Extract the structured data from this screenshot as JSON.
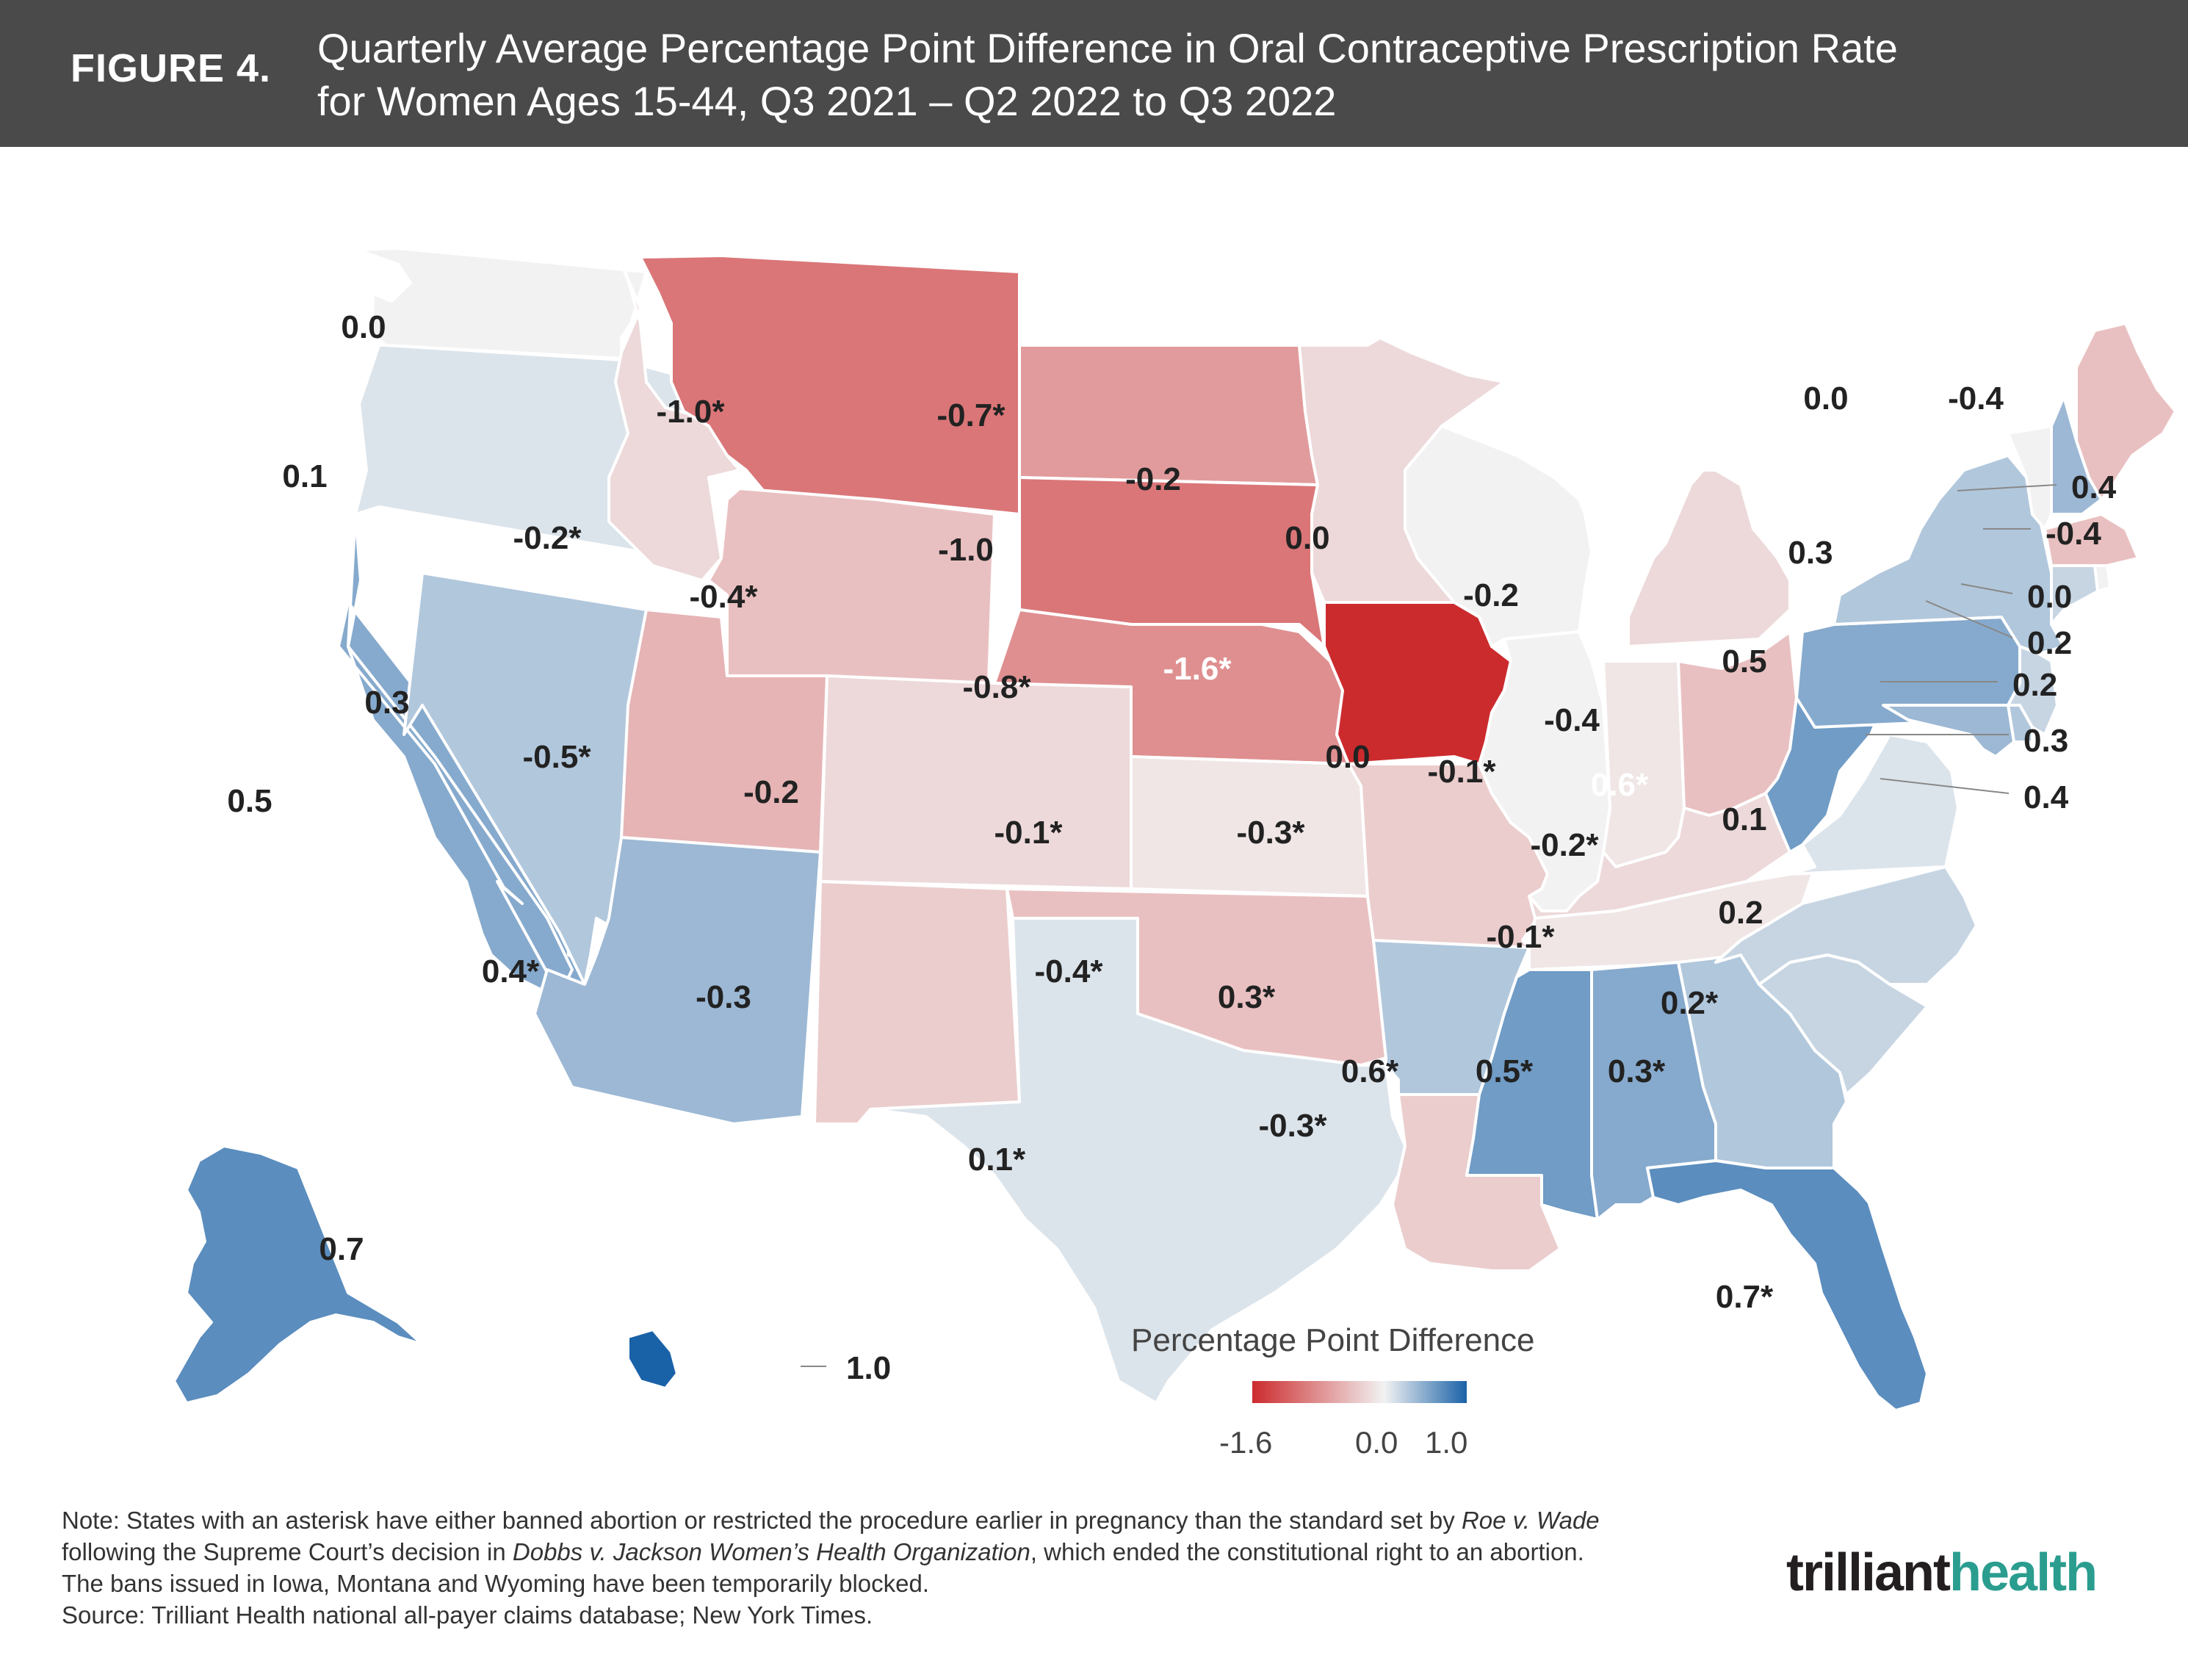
{
  "header": {
    "figure_label": "FIGURE 4.",
    "title_line1": "Quarterly Average Percentage Point Difference in Oral Contraceptive Prescription Rate",
    "title_line2": "for Women Ages 15-44, Q3 2021 – Q2 2022 to Q3 2022"
  },
  "legend": {
    "title": "Percentage Point Difference",
    "min_label": "-1.6",
    "mid_label": "0.0",
    "max_label": "1.0",
    "min_color": "#cc2b2e",
    "mid_color": "#f2f2f2",
    "max_color": "#1a62a8"
  },
  "states": [
    {
      "id": "WA",
      "value": -0.0,
      "label": "0.0"
    },
    {
      "id": "OR",
      "value": 0.1,
      "label": "0.1"
    },
    {
      "id": "CA",
      "value": 0.5,
      "label": "0.5"
    },
    {
      "id": "NV",
      "value": 0.3,
      "label": "0.3"
    },
    {
      "id": "ID",
      "value": -0.2,
      "label": "-0.2*"
    },
    {
      "id": "MT",
      "value": -1.0,
      "label": "-1.0*"
    },
    {
      "id": "WY",
      "value": -0.4,
      "label": "-0.4*"
    },
    {
      "id": "UT",
      "value": -0.5,
      "label": "-0.5*"
    },
    {
      "id": "AZ",
      "value": 0.4,
      "label": "0.4*"
    },
    {
      "id": "CO",
      "value": -0.2,
      "label": "-0.2"
    },
    {
      "id": "NM",
      "value": -0.3,
      "label": "-0.3"
    },
    {
      "id": "ND",
      "value": -0.7,
      "label": "-0.7*"
    },
    {
      "id": "SD",
      "value": -1.0,
      "label": "-1.0"
    },
    {
      "id": "NE",
      "value": -0.8,
      "label": "-0.8*"
    },
    {
      "id": "KS",
      "value": -0.1,
      "label": "-0.1*"
    },
    {
      "id": "OK",
      "value": -0.4,
      "label": "-0.4*"
    },
    {
      "id": "TX",
      "value": 0.1,
      "label": "0.1*"
    },
    {
      "id": "MN",
      "value": -0.2,
      "label": "-0.2"
    },
    {
      "id": "IA",
      "value": -1.6,
      "label": "-1.6*"
    },
    {
      "id": "MO",
      "value": -0.3,
      "label": "-0.3*"
    },
    {
      "id": "AR",
      "value": 0.3,
      "label": "0.3*"
    },
    {
      "id": "LA",
      "value": -0.3,
      "label": "-0.3*"
    },
    {
      "id": "WI",
      "value": 0.0,
      "label": "0.0"
    },
    {
      "id": "IL",
      "value": -0.0,
      "label": "0.0"
    },
    {
      "id": "MI",
      "value": -0.2,
      "label": "-0.2"
    },
    {
      "id": "IN",
      "value": -0.1,
      "label": "-0.1*"
    },
    {
      "id": "OH",
      "value": -0.4,
      "label": "-0.4"
    },
    {
      "id": "KY",
      "value": -0.2,
      "label": "-0.2*"
    },
    {
      "id": "TN",
      "value": -0.1,
      "label": "-0.1*"
    },
    {
      "id": "MS",
      "value": 0.6,
      "label": "0.6*"
    },
    {
      "id": "AL",
      "value": 0.5,
      "label": "0.5*"
    },
    {
      "id": "GA",
      "value": 0.3,
      "label": "0.3*"
    },
    {
      "id": "FL",
      "value": 0.7,
      "label": "0.7*"
    },
    {
      "id": "SC",
      "value": 0.2,
      "label": "0.2*"
    },
    {
      "id": "NC",
      "value": 0.2,
      "label": "0.2"
    },
    {
      "id": "VA",
      "value": 0.1,
      "label": "0.1"
    },
    {
      "id": "WV",
      "value": 0.6,
      "label": "0.6*"
    },
    {
      "id": "PA",
      "value": 0.5,
      "label": "0.5"
    },
    {
      "id": "NY",
      "value": 0.3,
      "label": "0.3"
    },
    {
      "id": "VT",
      "value": 0.0,
      "label": "0.0"
    },
    {
      "id": "NH",
      "value": 0.4,
      "label": "0.4"
    },
    {
      "id": "ME",
      "value": -0.4,
      "label": "-0.4"
    },
    {
      "id": "MA",
      "value": -0.4,
      "label": "-0.4"
    },
    {
      "id": "RI",
      "value": 0.0,
      "label": "0.0"
    },
    {
      "id": "CT",
      "value": 0.2,
      "label": "0.2"
    },
    {
      "id": "NJ",
      "value": 0.2,
      "label": "0.2"
    },
    {
      "id": "DE",
      "value": 0.3,
      "label": "0.3"
    },
    {
      "id": "MD",
      "value": 0.4,
      "label": "0.4"
    },
    {
      "id": "AK",
      "value": 0.7,
      "label": "0.7"
    },
    {
      "id": "HI",
      "value": 1.0,
      "label": "1.0"
    }
  ],
  "note": {
    "line1_a": "Note: States with an asterisk have either banned abortion or restricted the procedure earlier in pregnancy than the standard set by ",
    "line1_it": "Roe v. Wade",
    "line2_a": "following the Supreme Court’s decision in ",
    "line2_it": "Dobbs v. Jackson Women’s Health Organization",
    "line2_b": ", which ended the constitutional right to an abortion.",
    "line3": "The bans issued in Iowa, Montana and Wyoming have been temporarily blocked.",
    "line4": "Source: Trilliant Health national all-payer claims database; New York Times."
  },
  "logo": {
    "text_a": "trilliant",
    "text_b": "health"
  }
}
